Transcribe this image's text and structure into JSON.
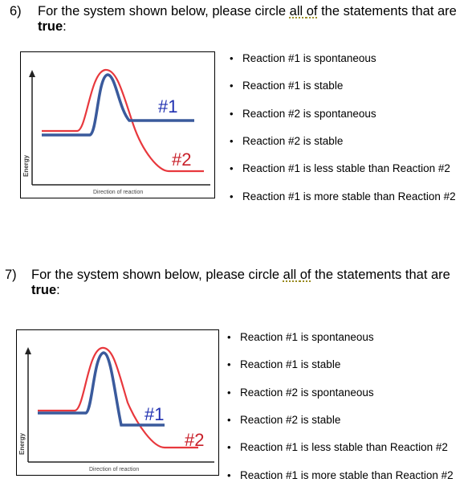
{
  "q6": {
    "number": "6)",
    "prompt_before": "For the system shown below, please circle ",
    "prompt_all": "all ",
    "prompt_of": "of",
    "prompt_after": " the statements that are",
    "prompt_true": "true",
    "prompt_colon": ":",
    "figure": {
      "ylabel": "Energy",
      "xlabel": "Direction of reaction",
      "label1": "#1",
      "label2": "#2"
    },
    "statements": [
      "Reaction #1 is spontaneous",
      "Reaction #1 is stable",
      "Reaction #2 is spontaneous",
      "Reaction #2 is stable",
      "Reaction #1 is less stable than Reaction #2",
      "Reaction #1 is more stable than Reaction #2"
    ]
  },
  "q7": {
    "number": "7)",
    "prompt_before": "For the system shown below, please circle ",
    "prompt_all": "all ",
    "prompt_of": "of",
    "prompt_after": " the statements that are",
    "prompt_true": "true",
    "prompt_colon": ":",
    "figure": {
      "ylabel": "Energy",
      "xlabel": "Direction of reaction",
      "label1": "#1",
      "label2": "#2"
    },
    "statements": [
      "Reaction #1 is spontaneous",
      "Reaction #1 is stable",
      "Reaction #2 is spontaneous",
      "Reaction #2 is stable",
      "Reaction #1 is less stable than Reaction #2",
      "Reaction #1 is more stable than Reaction #2"
    ]
  },
  "colors": {
    "reaction1": "#3a5a9c",
    "reaction2": "#e8383d"
  },
  "bullet": "•"
}
